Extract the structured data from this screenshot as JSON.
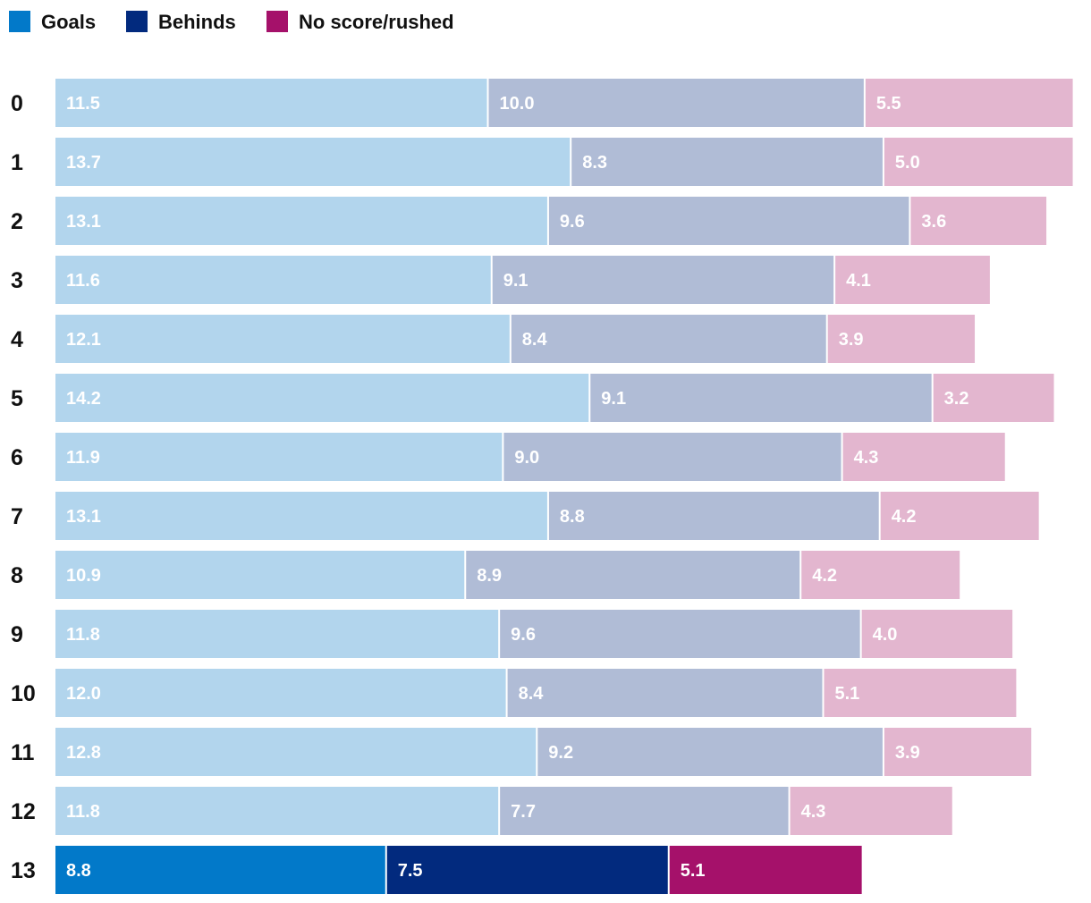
{
  "chart_data": {
    "type": "bar",
    "orientation": "horizontal",
    "stacked": true,
    "title": "",
    "xlabel": "",
    "ylabel": "",
    "legend_position": "top-left",
    "grid": false,
    "xlim": [
      0,
      27.2
    ],
    "categories": [
      "0",
      "1",
      "2",
      "3",
      "4",
      "5",
      "6",
      "7",
      "8",
      "9",
      "10",
      "11",
      "12",
      "13"
    ],
    "highlight_category": "13",
    "series": [
      {
        "name": "Goals",
        "color": "#0279c9",
        "muted_color": "#b2d5ed",
        "values": [
          11.5,
          13.7,
          13.1,
          11.6,
          12.1,
          14.2,
          11.9,
          13.1,
          10.9,
          11.8,
          12.0,
          12.8,
          11.8,
          8.8
        ],
        "labels": [
          "11.5",
          "13.7",
          "13.1",
          "11.6",
          "12.1",
          "14.2",
          "11.9",
          "13.1",
          "10.9",
          "11.8",
          "12.0",
          "12.8",
          "11.8",
          "8.8"
        ]
      },
      {
        "name": "Behinds",
        "color": "#022a7e",
        "muted_color": "#b0bcd6",
        "values": [
          10.0,
          8.3,
          9.6,
          9.1,
          8.4,
          9.1,
          9.0,
          8.8,
          8.9,
          9.6,
          8.4,
          9.2,
          7.7,
          7.5
        ],
        "labels": [
          "10.0",
          "8.3",
          "9.6",
          "9.1",
          "8.4",
          "9.1",
          "9.0",
          "8.8",
          "8.9",
          "9.6",
          "8.4",
          "9.2",
          "7.7",
          "7.5"
        ]
      },
      {
        "name": "No score/rushed",
        "color": "#a5116a",
        "muted_color": "#e3b6cf",
        "values": [
          5.5,
          5.0,
          3.6,
          4.1,
          3.9,
          3.2,
          4.3,
          4.2,
          4.2,
          4.0,
          5.1,
          3.9,
          4.3,
          5.1
        ],
        "labels": [
          "5.5",
          "5.0",
          "3.6",
          "4.1",
          "3.9",
          "3.2",
          "4.3",
          "4.2",
          "4.2",
          "4.0",
          "5.1",
          "3.9",
          "4.3",
          "5.1"
        ]
      }
    ]
  }
}
